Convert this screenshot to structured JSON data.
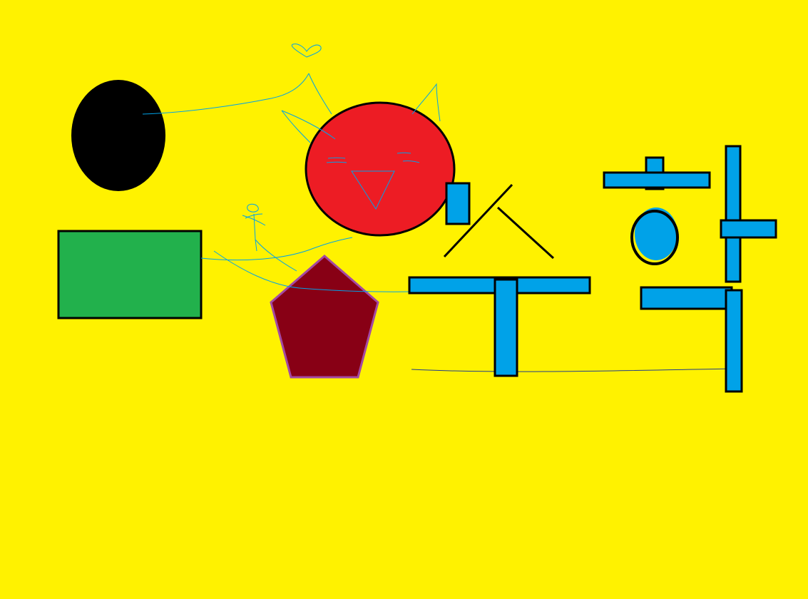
{
  "canvas": {
    "background": "#FFF200"
  },
  "colors": {
    "black": "#000000",
    "red": "#ED1C24",
    "green": "#22B14C",
    "maroon": "#880015",
    "purple": "#A349A4",
    "blue": "#00A2E8",
    "sketch": "#00A2E8",
    "thin_line": "#1F3B8C"
  },
  "shapes": [
    "black-oval",
    "red-circle",
    "green-rectangle",
    "maroon-pentagon"
  ],
  "doodles": [
    "cat-face-sketch",
    "heart-sketch",
    "stick-figure-sketch"
  ],
  "letters": [
    "hangul-su",
    "hangul-hak"
  ]
}
